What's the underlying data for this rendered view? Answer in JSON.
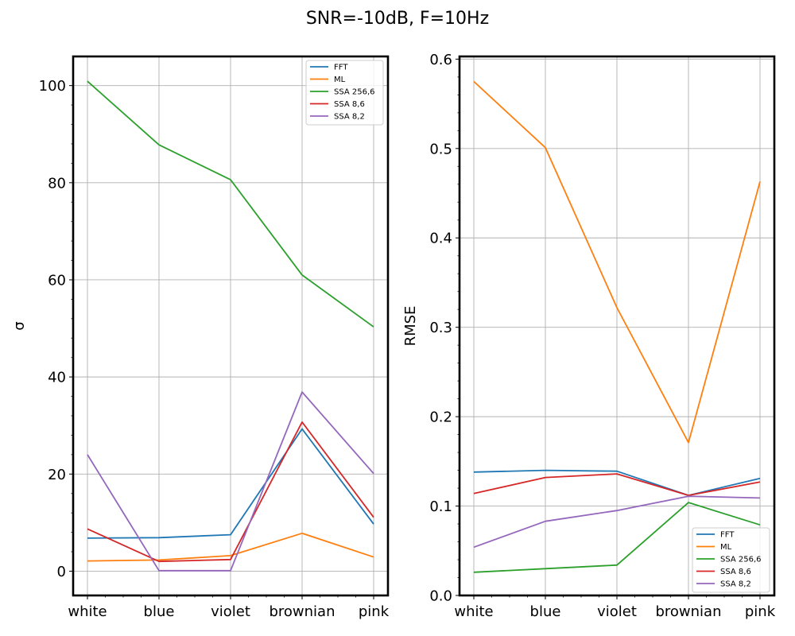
{
  "figure": {
    "suptitle": "SNR=-10dB, F=10Hz"
  },
  "colors": {
    "FFT": "#1f77b4",
    "ML": "#ff7f0e",
    "SSA 256,6": "#2ca02c",
    "SSA 8,6": "#d62728",
    "SSA 8,2": "#9467bd",
    "grid": "#b0b0b0",
    "axes": "#000000"
  },
  "chart_data": [
    {
      "type": "line",
      "xlabel": "",
      "ylabel": "σ",
      "categories": [
        "white",
        "blue",
        "violet",
        "brownian",
        "pink"
      ],
      "ylim": [
        -5,
        106
      ],
      "yticks": [
        0,
        20,
        40,
        60,
        80,
        100
      ],
      "ytick_labels": [
        "0",
        "20",
        "40",
        "60",
        "80",
        "100"
      ],
      "grid": true,
      "legend_position": "top-right",
      "series": [
        {
          "name": "FFT",
          "values": [
            6.8,
            6.9,
            7.5,
            29.3,
            9.7
          ]
        },
        {
          "name": "ML",
          "values": [
            2.1,
            2.3,
            3.2,
            7.8,
            2.9
          ]
        },
        {
          "name": "SSA 256,6",
          "values": [
            100.9,
            87.8,
            80.6,
            61.0,
            50.3
          ]
        },
        {
          "name": "SSA 8,6",
          "values": [
            8.7,
            2.0,
            2.4,
            30.7,
            11.1
          ]
        },
        {
          "name": "SSA 8,2",
          "values": [
            24.0,
            0.1,
            0.1,
            36.9,
            20.1
          ]
        }
      ]
    },
    {
      "type": "line",
      "xlabel": "",
      "ylabel": "RMSE",
      "categories": [
        "white",
        "blue",
        "violet",
        "brownian",
        "pink"
      ],
      "ylim": [
        0,
        0.603
      ],
      "yticks": [
        0.0,
        0.1,
        0.2,
        0.3,
        0.4,
        0.5,
        0.6
      ],
      "ytick_labels": [
        "0.0",
        "0.1",
        "0.2",
        "0.3",
        "0.4",
        "0.5",
        "0.6"
      ],
      "grid": true,
      "legend_position": "bottom-right",
      "series": [
        {
          "name": "FFT",
          "values": [
            0.138,
            0.14,
            0.139,
            0.112,
            0.131
          ]
        },
        {
          "name": "ML",
          "values": [
            0.575,
            0.501,
            0.322,
            0.171,
            0.463
          ]
        },
        {
          "name": "SSA 256,6",
          "values": [
            0.026,
            0.03,
            0.034,
            0.104,
            0.079
          ]
        },
        {
          "name": "SSA 8,6",
          "values": [
            0.114,
            0.132,
            0.136,
            0.112,
            0.127
          ]
        },
        {
          "name": "SSA 8,2",
          "values": [
            0.054,
            0.083,
            0.095,
            0.111,
            0.109
          ]
        }
      ]
    }
  ]
}
